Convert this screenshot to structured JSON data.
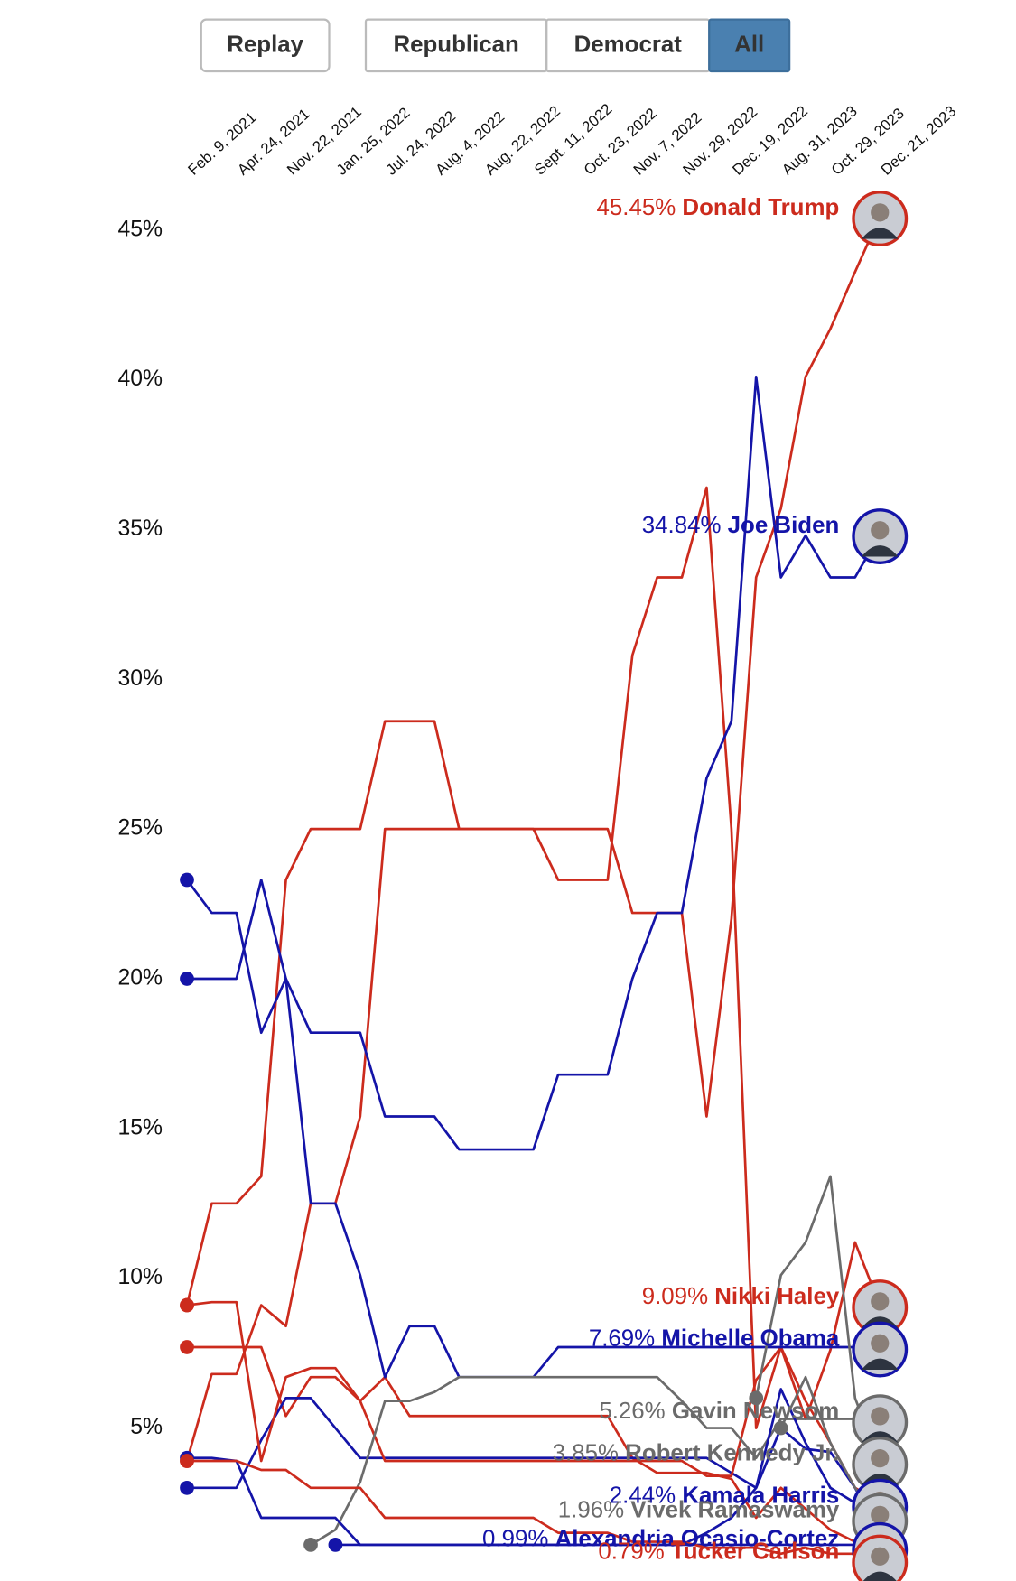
{
  "buttons": [
    "Replay",
    "Republican",
    "Democrat",
    "All"
  ],
  "active_button": "All",
  "chart_data": {
    "type": "line",
    "categories": [
      "Feb. 9, 2021",
      null,
      "Apr. 24, 2021",
      null,
      "Nov. 22, 2021",
      null,
      "Jan. 25, 2022",
      null,
      "Jul. 24, 2022",
      null,
      "Aug. 4, 2022",
      null,
      "Aug. 22, 2022",
      null,
      "Sept. 11, 2022",
      null,
      "Oct. 23, 2022",
      null,
      "Nov. 7, 2022",
      null,
      "Nov. 29, 2022",
      null,
      "Dec. 19, 2022",
      null,
      "Aug. 31, 2023",
      null,
      "Oct. 29, 2023",
      null,
      "Dec. 21, 2023"
    ],
    "ylim": [
      0,
      46.5
    ],
    "yticks": [
      {
        "value": 5,
        "label": "5%"
      },
      {
        "value": 10,
        "label": "10%"
      },
      {
        "value": 15,
        "label": "15%"
      },
      {
        "value": 20,
        "label": "20%"
      },
      {
        "value": 25,
        "label": "25%"
      },
      {
        "value": 30,
        "label": "30%"
      },
      {
        "value": 35,
        "label": "35%"
      },
      {
        "value": 40,
        "label": "40%"
      },
      {
        "value": 45,
        "label": "45%"
      }
    ],
    "grid": false,
    "series": [
      {
        "color": "#cc2b1d",
        "values": [
          3.9,
          6.8,
          6.8,
          9.1,
          8.4,
          12.5,
          12.5,
          15.4,
          25,
          25,
          25,
          25,
          25,
          25,
          25,
          23.3,
          23.3,
          23.3,
          30.8,
          33.4,
          33.4,
          36.4,
          25,
          5,
          7.7,
          5.9,
          4.5,
          3,
          2.5
        ]
      },
      {
        "color": "#cc2b1d",
        "values": [
          7.7,
          7.7,
          7.7,
          7.7,
          5.4,
          6.7,
          6.7,
          5.9,
          6.7,
          5.4,
          5.4,
          5.4,
          5.4,
          5.4,
          5.4,
          5.4,
          5.4,
          5.4,
          4,
          3.5,
          3.5,
          3.5,
          3.3,
          2,
          3,
          2.3,
          1.6,
          1.2,
          1.5
        ]
      },
      {
        "color": "#1414a8",
        "values": [
          3,
          3,
          3,
          4.6,
          6,
          6,
          5,
          4,
          4,
          4,
          4,
          4,
          4,
          4,
          4,
          4,
          4,
          4,
          4,
          4,
          4,
          4,
          3.5,
          3,
          5,
          4.3,
          4.2,
          3,
          1.5
        ]
      },
      {
        "name": "Donald Trump",
        "color": "#cc2b1d",
        "values": [
          9.1,
          12.5,
          12.5,
          13.4,
          23.3,
          25,
          25,
          25,
          28.6,
          28.6,
          28.6,
          25,
          25,
          25,
          25,
          25,
          25,
          25,
          22.2,
          22.2,
          22.2,
          15.4,
          22,
          33.4,
          35.7,
          40.1,
          41.7,
          43.6,
          45.45
        ],
        "value_labels": [
          null,
          null,
          null,
          null,
          null,
          null,
          null,
          null,
          null,
          null,
          null,
          null,
          null,
          null,
          null,
          null,
          null,
          null,
          null,
          null,
          null,
          null,
          null,
          null,
          null,
          null,
          null,
          null,
          "45.45%"
        ]
      },
      {
        "name": "Joe Biden",
        "color": "#1414a8",
        "values": [
          23.3,
          22.2,
          22.2,
          18.2,
          20,
          18.2,
          18.2,
          18.2,
          15.4,
          15.4,
          15.4,
          14.3,
          14.3,
          14.3,
          14.3,
          16.8,
          16.8,
          16.8,
          20,
          22.2,
          22.2,
          26.7,
          28.6,
          40.1,
          33.4,
          34.8,
          33.4,
          33.4,
          34.84
        ],
        "value_labels": [
          null,
          null,
          null,
          null,
          null,
          null,
          null,
          null,
          null,
          null,
          null,
          null,
          null,
          null,
          null,
          null,
          null,
          null,
          null,
          null,
          null,
          null,
          null,
          null,
          null,
          null,
          null,
          null,
          "34.84%"
        ]
      },
      {
        "name": "Nikki Haley",
        "color": "#cc2b1d",
        "values": [
          9.1,
          9.2,
          9.2,
          3.9,
          6.7,
          7,
          7,
          5.9,
          3.9,
          3.9,
          3.9,
          3.9,
          3.9,
          3.9,
          3.9,
          3.9,
          3.9,
          3.9,
          3.9,
          3.9,
          3.9,
          3.4,
          3.4,
          6.6,
          7.7,
          5.3,
          7.6,
          11.2,
          9.09
        ],
        "value_labels": [
          null,
          null,
          null,
          null,
          null,
          null,
          null,
          null,
          null,
          null,
          null,
          null,
          null,
          null,
          null,
          null,
          null,
          null,
          null,
          null,
          null,
          null,
          null,
          null,
          null,
          null,
          null,
          null,
          "9.09%"
        ]
      },
      {
        "name": "Michelle Obama",
        "color": "#1414a8",
        "values": [
          20,
          20,
          20,
          23.3,
          20,
          12.5,
          12.5,
          10.1,
          6.7,
          8.4,
          8.4,
          6.7,
          6.7,
          6.7,
          6.7,
          7.7,
          7.7,
          7.7,
          7.7,
          7.7,
          7.7,
          7.7,
          7.7,
          7.7,
          7.7,
          7.7,
          7.7,
          7.7,
          7.69
        ],
        "value_labels": [
          null,
          null,
          null,
          null,
          null,
          null,
          null,
          null,
          null,
          null,
          null,
          null,
          null,
          null,
          null,
          null,
          null,
          null,
          null,
          null,
          null,
          null,
          null,
          null,
          null,
          null,
          null,
          null,
          "7.69%"
        ]
      },
      {
        "name": "Gavin Newsom",
        "color": "#6b6b6b",
        "values": [
          null,
          null,
          null,
          null,
          null,
          1.1,
          1.6,
          3.2,
          5.9,
          5.9,
          6.2,
          6.7,
          6.7,
          6.7,
          6.7,
          6.7,
          6.7,
          6.7,
          6.7,
          6.7,
          5.9,
          5,
          5,
          4,
          5.3,
          5.3,
          5.3,
          5.3,
          5.26
        ],
        "value_labels": [
          null,
          null,
          null,
          null,
          null,
          null,
          null,
          null,
          null,
          null,
          null,
          null,
          null,
          null,
          null,
          null,
          null,
          null,
          null,
          null,
          null,
          null,
          null,
          null,
          null,
          null,
          null,
          null,
          "5.26%"
        ]
      },
      {
        "name": "Robert Kennedy Jr.",
        "color": "#6b6b6b",
        "values": [
          null,
          null,
          null,
          null,
          null,
          null,
          null,
          null,
          null,
          null,
          null,
          null,
          null,
          null,
          null,
          null,
          null,
          null,
          null,
          null,
          null,
          null,
          null,
          6,
          10.1,
          11.2,
          13.4,
          6,
          3.85
        ],
        "value_labels": [
          null,
          null,
          null,
          null,
          null,
          null,
          null,
          null,
          null,
          null,
          null,
          null,
          null,
          null,
          null,
          null,
          null,
          null,
          null,
          null,
          null,
          null,
          null,
          null,
          null,
          null,
          null,
          null,
          "3.85%"
        ]
      },
      {
        "name": "Kamala Harris",
        "color": "#1414a8",
        "values": [
          4,
          4,
          3.9,
          2,
          2,
          2,
          2,
          1.1,
          1.1,
          1.1,
          1.1,
          1.1,
          1.1,
          1.1,
          1.1,
          1.1,
          1.1,
          1.1,
          1.1,
          1.1,
          1.1,
          1.5,
          2,
          3,
          6.3,
          4.5,
          3,
          2.5,
          2.44
        ],
        "value_labels": [
          null,
          null,
          null,
          null,
          null,
          null,
          null,
          null,
          null,
          null,
          null,
          null,
          null,
          null,
          null,
          null,
          null,
          null,
          null,
          null,
          null,
          null,
          null,
          null,
          null,
          null,
          null,
          null,
          "2.44%"
        ]
      },
      {
        "name": "Vivek Ramaswamy",
        "color": "#6b6b6b",
        "values": [
          null,
          null,
          null,
          null,
          null,
          null,
          null,
          null,
          null,
          null,
          null,
          null,
          null,
          null,
          null,
          null,
          null,
          null,
          null,
          null,
          null,
          null,
          null,
          null,
          5,
          6.7,
          4.5,
          3,
          1.96
        ],
        "value_labels": [
          null,
          null,
          null,
          null,
          null,
          null,
          null,
          null,
          null,
          null,
          null,
          null,
          null,
          null,
          null,
          null,
          null,
          null,
          null,
          null,
          null,
          null,
          null,
          null,
          null,
          null,
          null,
          null,
          "1.96%"
        ]
      },
      {
        "name": "Alexandria Ocasio-Cortez",
        "color": "#1414a8",
        "values": [
          null,
          null,
          null,
          null,
          null,
          null,
          1.1,
          1.1,
          1.1,
          1.1,
          1.1,
          1.1,
          1.1,
          1.1,
          1.1,
          1.1,
          1.1,
          1.1,
          1.1,
          1.1,
          1.1,
          1.1,
          1.1,
          1.1,
          1.1,
          1.1,
          1.1,
          1.1,
          0.99
        ],
        "value_labels": [
          null,
          null,
          null,
          null,
          null,
          null,
          null,
          null,
          null,
          null,
          null,
          null,
          null,
          null,
          null,
          null,
          null,
          null,
          null,
          null,
          null,
          null,
          null,
          null,
          null,
          null,
          null,
          null,
          "0.99%"
        ]
      },
      {
        "name": "Tucker Carlson",
        "color": "#cc2b1d",
        "values": [
          3.9,
          3.9,
          3.9,
          3.6,
          3.6,
          3,
          3,
          3,
          2,
          2,
          2,
          2,
          2,
          2,
          2,
          1.5,
          1.5,
          1.5,
          1.2,
          1.2,
          1.2,
          1,
          1,
          1,
          0.8,
          1,
          0.8,
          0.8,
          0.79
        ],
        "value_labels": [
          null,
          null,
          null,
          null,
          null,
          null,
          null,
          null,
          null,
          null,
          null,
          null,
          null,
          null,
          null,
          null,
          null,
          null,
          null,
          null,
          null,
          null,
          null,
          null,
          null,
          null,
          null,
          null,
          "0.79%"
        ]
      }
    ]
  }
}
